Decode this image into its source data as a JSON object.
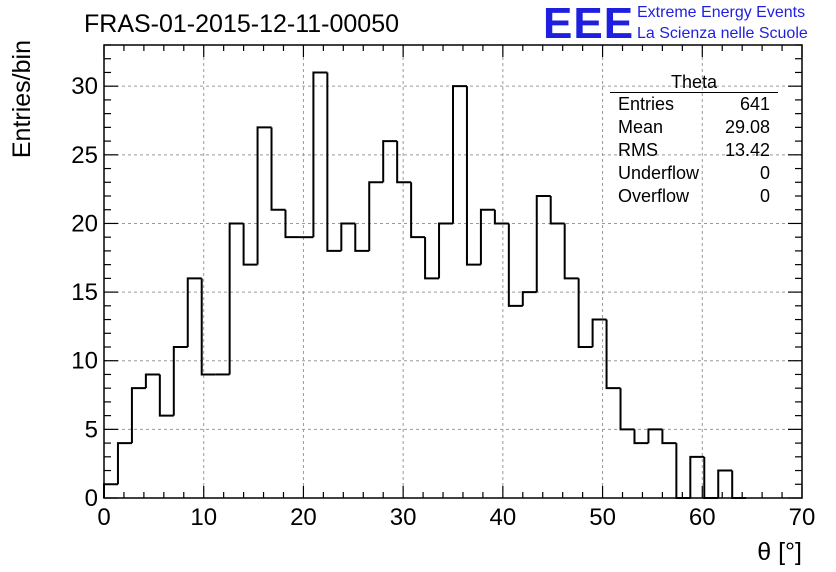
{
  "header": {
    "title": "FRAS-01-2015-12-11-00050",
    "logo_text": "EEE",
    "brand_line1": "Extreme Energy Events",
    "brand_line2": "La Scienza nelle Scuole"
  },
  "stats_box": {
    "title": "Theta",
    "rows": [
      {
        "label": "Entries",
        "value": "641"
      },
      {
        "label": "Mean",
        "value": "29.08"
      },
      {
        "label": "RMS",
        "value": "13.42"
      },
      {
        "label": "Underflow",
        "value": "0"
      },
      {
        "label": "Overflow",
        "value": "0"
      }
    ]
  },
  "colors": {
    "histogram_line": "#000000",
    "grid": "#9a9a9a",
    "brand_blue": "#1f1fe0"
  },
  "chart_data": {
    "type": "bar",
    "title": "FRAS-01-2015-12-11-00050",
    "xlabel": "θ [°]",
    "ylabel": "Entries/bin",
    "xlim": [
      0,
      70
    ],
    "ylim": [
      0,
      33
    ],
    "bin_width": 1.4,
    "bin_edges_start": 0,
    "values": [
      1,
      4,
      8,
      9,
      6,
      11,
      16,
      9,
      9,
      20,
      17,
      27,
      21,
      19,
      19,
      31,
      18,
      20,
      18,
      23,
      26,
      23,
      19,
      16,
      20,
      30,
      17,
      21,
      20,
      14,
      15,
      22,
      20,
      16,
      11,
      13,
      8,
      5,
      4,
      5,
      4,
      0,
      3,
      0,
      2,
      0
    ],
    "x_ticks": [
      0,
      10,
      20,
      30,
      40,
      50,
      60,
      70
    ],
    "y_ticks": [
      0,
      5,
      10,
      15,
      20,
      25,
      30
    ],
    "grid": true
  }
}
